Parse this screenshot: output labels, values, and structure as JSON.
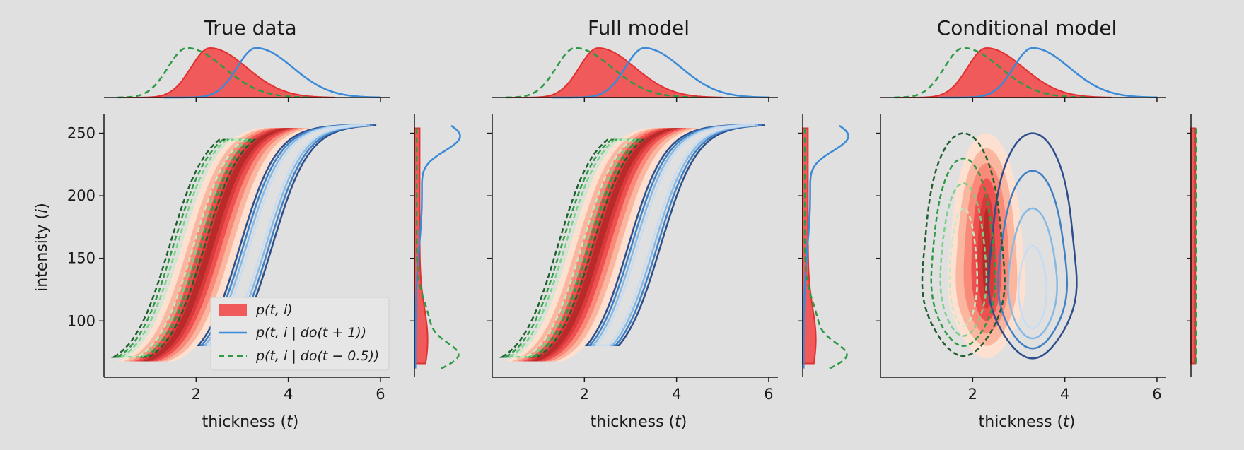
{
  "chart_data": [
    {
      "type": "contour",
      "title": "True data",
      "xlabel": "thickness (t)",
      "ylabel": "intensity (i)",
      "xlim": [
        0,
        6.2
      ],
      "ylim": [
        55,
        265
      ],
      "xticks": [
        "2",
        "4",
        "6"
      ],
      "yticks": [
        "100",
        "150",
        "200",
        "250"
      ],
      "legend": {
        "placement": "lower-right",
        "entries": [
          {
            "label": "p(t, i)",
            "style": "filled",
            "color": "#f05a5a"
          },
          {
            "label": "p(t, i | do(t + 1))",
            "style": "solid",
            "color": "#3a8ad8"
          },
          {
            "label": "p(t, i | do(t − 0.5))",
            "style": "dashed",
            "color": "#2e9a45"
          }
        ]
      },
      "marginals": {
        "thickness": {
          "observed_peak": 2.3,
          "do_plus_1_peak": 3.3,
          "do_minus_0_5_peak": 1.8
        }
      }
    },
    {
      "type": "contour",
      "title": "Full model",
      "xlabel": "thickness (t)",
      "xlim": [
        0,
        6.2
      ],
      "ylim": [
        55,
        265
      ],
      "xticks": [
        "2",
        "4",
        "6"
      ],
      "yticks": [
        "100",
        "150",
        "200",
        "250"
      ]
    },
    {
      "type": "contour",
      "title": "Conditional model",
      "xlabel": "thickness (t)",
      "xlim": [
        0,
        6.2
      ],
      "ylim": [
        55,
        265
      ],
      "xticks": [
        "2",
        "4",
        "6"
      ],
      "yticks": [
        "100",
        "150",
        "200",
        "250"
      ]
    }
  ],
  "colors": {
    "observed_fill": "#f05a5a",
    "do_plus_1": "#3a8ad8",
    "do_minus_0_5": "#2e9a45",
    "background": "#e0e0e0"
  }
}
